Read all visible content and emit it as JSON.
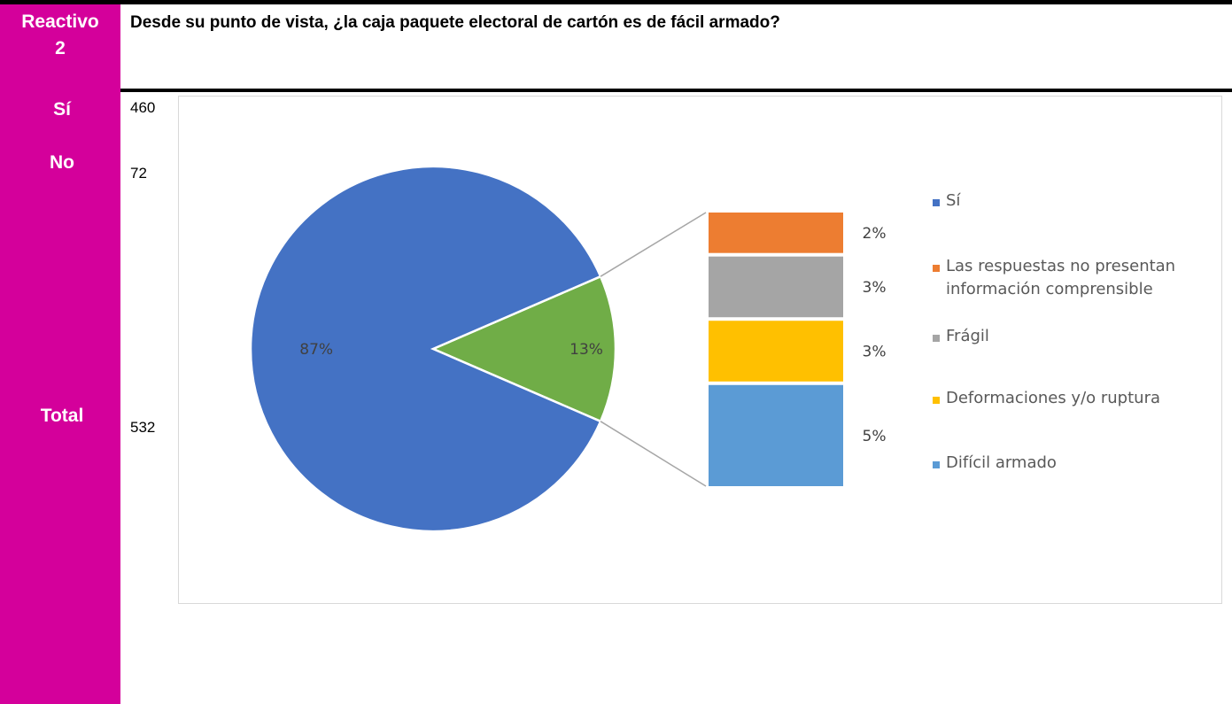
{
  "header": {
    "reactivo_line1": "Reactivo",
    "reactivo_line2": "2",
    "question": "Desde su punto de vista, ¿la caja paquete electoral de cartón es de fácil armado?"
  },
  "table": {
    "si_label": "Sí",
    "si_count": "460",
    "no_label": "No",
    "no_count": "72",
    "total_label": "Total",
    "total_count": "532"
  },
  "chart_data": {
    "type": "pie",
    "variant": "bar-of-pie",
    "pie": [
      {
        "name": "Sí",
        "value": 87,
        "label": "87%",
        "color": "#4472c4"
      },
      {
        "name": "No",
        "value": 13,
        "label": "13%",
        "color": "#70ad47"
      }
    ],
    "breakdown": [
      {
        "name": "Las respuestas no presentan información comprensible",
        "value": 2,
        "label": "2%",
        "color": "#ed7d31"
      },
      {
        "name": "Frágil",
        "value": 3,
        "label": "3%",
        "color": "#a5a5a5"
      },
      {
        "name": "Deformaciones y/o ruptura",
        "value": 3,
        "label": "3%",
        "color": "#ffc000"
      },
      {
        "name": "Difícil armado",
        "value": 5,
        "label": "5%",
        "color": "#5b9bd5"
      }
    ],
    "legend": [
      {
        "label_lines": [
          "Sí"
        ],
        "color": "#4472c4"
      },
      {
        "label_lines": [
          "Las respuestas no presentan",
          "información comprensible"
        ],
        "color": "#ed7d31"
      },
      {
        "label_lines": [
          "Frágil"
        ],
        "color": "#a5a5a5"
      },
      {
        "label_lines": [
          "Deformaciones y/o ruptura"
        ],
        "color": "#ffc000"
      },
      {
        "label_lines": [
          "Difícil armado"
        ],
        "color": "#5b9bd5"
      }
    ],
    "legend_position": "right"
  }
}
